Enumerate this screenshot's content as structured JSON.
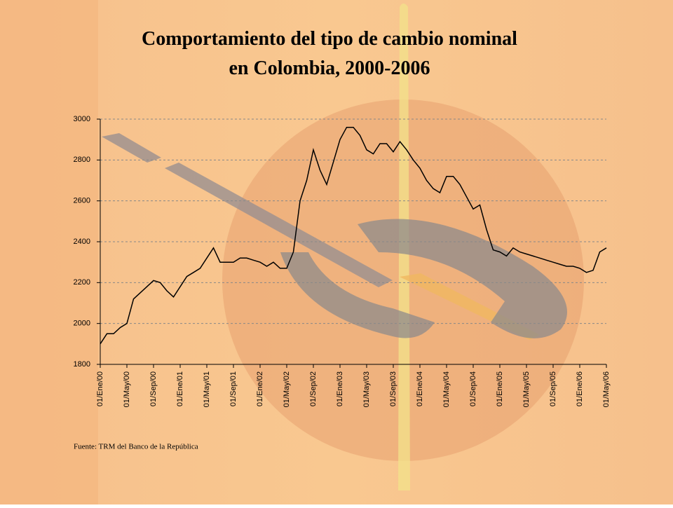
{
  "chart_data": {
    "type": "line",
    "title": "Comportamiento del tipo de  cambio nominal en Colombia, 2000-2006",
    "note": "Fuente: TRM del Banco de la República",
    "categories": [
      "01/Ene/00",
      null,
      null,
      null,
      "01/May/00",
      null,
      null,
      null,
      "01/Sep/00",
      null,
      null,
      null,
      "01/Ene/01",
      null,
      null,
      null,
      "01/May/01",
      null,
      null,
      null,
      "01/Sep/01",
      null,
      null,
      null,
      "01/Ene/02",
      null,
      null,
      null,
      "01/May/02",
      null,
      null,
      null,
      "01/Sep/02",
      null,
      null,
      null,
      "01/Ene/03",
      null,
      null,
      null,
      "01/May/03",
      null,
      null,
      null,
      "01/Sep/03",
      null,
      null,
      null,
      "01/Ene/04",
      null,
      null,
      null,
      "01/May/04",
      null,
      null,
      null,
      "01/Sep/04",
      null,
      null,
      null,
      "01/Ene/05",
      null,
      null,
      null,
      "01/May/05",
      null,
      null,
      null,
      "01/Sep/05",
      null,
      null,
      null,
      "01/Ene/06",
      null,
      null,
      null,
      "01/May/06"
    ],
    "values": [
      1900,
      1950,
      1950,
      1980,
      2000,
      2120,
      2150,
      2180,
      2210,
      2200,
      2160,
      2130,
      2180,
      2230,
      2250,
      2270,
      2320,
      2370,
      2300,
      2300,
      2300,
      2320,
      2320,
      2310,
      2300,
      2280,
      2300,
      2270,
      2270,
      2350,
      2600,
      2700,
      2850,
      2750,
      2680,
      2790,
      2900,
      2960,
      2960,
      2920,
      2850,
      2830,
      2880,
      2880,
      2840,
      2890,
      2850,
      2800,
      2760,
      2700,
      2660,
      2640,
      2720,
      2720,
      2680,
      2620,
      2560,
      2580,
      2460,
      2360,
      2350,
      2330,
      2370,
      2350,
      2340,
      2330,
      2320,
      2310,
      2300,
      2290,
      2280,
      2280,
      2270,
      2250,
      2260,
      2350,
      2370
    ],
    "color": "#000000",
    "ylim": [
      1800,
      3000
    ],
    "yticks": [
      1800,
      2000,
      2200,
      2400,
      2600,
      2800,
      3000
    ],
    "grid": true
  }
}
